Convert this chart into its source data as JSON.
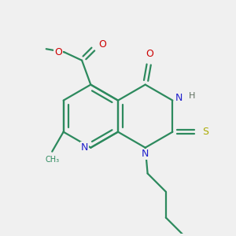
{
  "bg_color": "#f0f0f0",
  "bond_color": "#2d8a5e",
  "bond_width": 1.6,
  "N_color": "#2020cc",
  "O_color": "#cc0000",
  "S_color": "#aaaa00",
  "C_color": "#2d8a5e",
  "H_color": "#607060",
  "figsize": [
    3.0,
    3.0
  ],
  "dpi": 100,
  "xlim": [
    0,
    5
  ],
  "ylim": [
    0,
    5
  ],
  "L": 0.68
}
